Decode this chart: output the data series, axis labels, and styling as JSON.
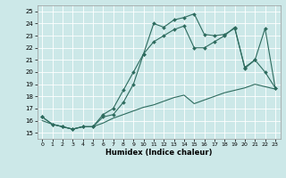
{
  "xlabel": "Humidex (Indice chaleur)",
  "bg_color": "#cce8e8",
  "line_color": "#2d6b5e",
  "xlim": [
    -0.5,
    23.5
  ],
  "ylim": [
    14.5,
    25.5
  ],
  "yticks": [
    15,
    16,
    17,
    18,
    19,
    20,
    21,
    22,
    23,
    24,
    25
  ],
  "xticks": [
    0,
    1,
    2,
    3,
    4,
    5,
    6,
    7,
    8,
    9,
    10,
    11,
    12,
    13,
    14,
    15,
    16,
    17,
    18,
    19,
    20,
    21,
    22,
    23
  ],
  "series1_x": [
    0,
    1,
    2,
    3,
    4,
    5,
    6,
    7,
    8,
    9,
    10,
    11,
    12,
    13,
    14,
    15,
    16,
    17,
    18,
    19,
    20,
    21,
    22,
    23
  ],
  "series1_y": [
    16.3,
    15.7,
    15.5,
    15.3,
    15.5,
    15.5,
    16.5,
    17.0,
    18.5,
    20.0,
    21.5,
    24.0,
    23.7,
    24.3,
    24.5,
    24.8,
    23.1,
    23.0,
    23.1,
    23.6,
    20.4,
    21.0,
    20.0,
    18.7
  ],
  "series2_x": [
    0,
    1,
    2,
    3,
    4,
    5,
    6,
    7,
    8,
    9,
    10,
    11,
    12,
    13,
    14,
    15,
    16,
    17,
    18,
    19,
    20,
    21,
    22,
    23
  ],
  "series2_y": [
    16.3,
    15.7,
    15.5,
    15.3,
    15.5,
    15.5,
    16.3,
    16.5,
    17.5,
    19.0,
    21.5,
    22.5,
    23.0,
    23.5,
    23.8,
    22.0,
    22.0,
    22.5,
    23.0,
    23.7,
    20.3,
    21.0,
    23.6,
    18.7
  ],
  "series3_x": [
    0,
    1,
    2,
    3,
    4,
    5,
    6,
    7,
    8,
    9,
    10,
    11,
    12,
    13,
    14,
    15,
    16,
    17,
    18,
    19,
    20,
    21,
    22,
    23
  ],
  "series3_y": [
    16.0,
    15.7,
    15.5,
    15.3,
    15.5,
    15.5,
    15.8,
    16.2,
    16.5,
    16.8,
    17.1,
    17.3,
    17.6,
    17.9,
    18.1,
    17.4,
    17.7,
    18.0,
    18.3,
    18.5,
    18.7,
    19.0,
    18.8,
    18.6
  ]
}
